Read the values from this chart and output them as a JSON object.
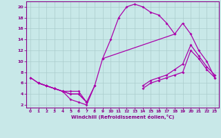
{
  "xlabel": "Windchill (Refroidissement éolien,°C)",
  "xlim": [
    -0.5,
    23.5
  ],
  "ylim": [
    1.5,
    21
  ],
  "xticks": [
    0,
    1,
    2,
    3,
    4,
    5,
    6,
    7,
    8,
    9,
    10,
    11,
    12,
    13,
    14,
    15,
    16,
    17,
    18,
    19,
    20,
    21,
    22,
    23
  ],
  "yticks": [
    2,
    4,
    6,
    8,
    10,
    12,
    14,
    16,
    18,
    20
  ],
  "bg_color": "#c8e8e8",
  "line_color": "#aa00aa",
  "grid_color": "#aacccc",
  "curve1_x": [
    0,
    1,
    2,
    3,
    4,
    5,
    6,
    7,
    8,
    9,
    10,
    11,
    12,
    13,
    14,
    15,
    16,
    17,
    18
  ],
  "curve1_y": [
    7,
    6,
    5.5,
    5,
    4.5,
    3,
    2.5,
    2,
    5.5,
    10.5,
    14,
    18,
    20,
    20.5,
    20,
    19,
    18.5,
    17,
    15
  ],
  "curve2_x": [
    0,
    1,
    2,
    3,
    4,
    5,
    6,
    7,
    8,
    9,
    18,
    19,
    20,
    21,
    22,
    23
  ],
  "curve2_y": [
    7,
    6,
    5.5,
    5,
    4.5,
    4.5,
    4.5,
    2.5,
    5.5,
    10.5,
    15,
    17,
    15,
    12,
    10,
    7
  ],
  "curve3_x": [
    1,
    2,
    3,
    4,
    5,
    6,
    7,
    14,
    15,
    16,
    17,
    18,
    19,
    20,
    21,
    22,
    23
  ],
  "curve3_y": [
    6,
    5.5,
    5,
    4.5,
    4,
    4,
    2.5,
    5,
    6,
    6.5,
    7,
    7.5,
    8,
    12,
    10.5,
    8.5,
    7
  ],
  "curve4_x": [
    1,
    2,
    3,
    4,
    5,
    6,
    7,
    14,
    15,
    16,
    17,
    18,
    19,
    20,
    21,
    22,
    23
  ],
  "curve4_y": [
    6,
    5.5,
    5,
    4.5,
    4,
    4,
    2.5,
    5.5,
    6.5,
    7,
    7.5,
    8.5,
    9.5,
    13,
    11,
    9,
    7.5
  ]
}
